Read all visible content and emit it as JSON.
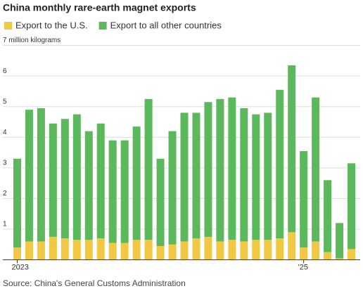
{
  "chart_data": {
    "type": "bar",
    "stacked": true,
    "title": "China monthly rare-earth magnet exports",
    "source": "Source: China's General Customs Administration",
    "categories": [
      "2023",
      null,
      null,
      null,
      null,
      null,
      null,
      null,
      null,
      null,
      null,
      null,
      null,
      null,
      null,
      null,
      null,
      null,
      null,
      null,
      null,
      null,
      null,
      null,
      "'25",
      null,
      null,
      null,
      null
    ],
    "series": [
      {
        "name": "Export to the U.S.",
        "color": "#f2c744",
        "values": [
          0.4,
          0.6,
          0.6,
          0.75,
          0.7,
          0.65,
          0.65,
          0.7,
          0.55,
          0.55,
          0.65,
          0.65,
          0.45,
          0.5,
          0.6,
          0.7,
          0.75,
          0.6,
          0.65,
          0.6,
          0.65,
          0.65,
          0.7,
          0.9,
          0.4,
          0.6,
          0.25,
          0.05,
          0.35
        ]
      },
      {
        "name": "Export to all other countries",
        "color": "#5cb85c",
        "values": [
          2.9,
          4.3,
          4.35,
          3.7,
          3.9,
          4.1,
          3.55,
          3.75,
          3.35,
          3.35,
          3.7,
          4.6,
          2.85,
          3.7,
          4.2,
          4.1,
          4.4,
          4.65,
          4.65,
          4.35,
          4.1,
          4.15,
          4.85,
          5.45,
          3.15,
          4.7,
          2.35,
          1.15,
          2.8
        ]
      }
    ],
    "ylim": [
      0,
      7
    ],
    "yticks": [
      1,
      2,
      3,
      4,
      5,
      6,
      {
        "value": 7,
        "label": "7 million kilograms"
      }
    ],
    "grid": true
  }
}
